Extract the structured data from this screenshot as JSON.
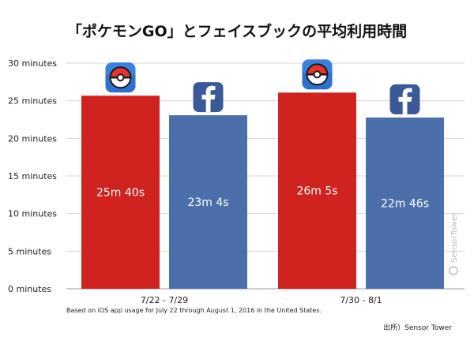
{
  "chart_data": {
    "type": "bar",
    "title": "「ポケモンGO」とフェイスブックの平均利用時間",
    "categories": [
      "7/22 - 7/29",
      "7/30 - 8/1"
    ],
    "series": [
      {
        "name": "Pokémon GO",
        "icon": "pokeball-app-icon",
        "color": "#d0231f",
        "values": [
          25.67,
          26.08
        ],
        "labels": [
          "25m 40s",
          "26m 5s"
        ]
      },
      {
        "name": "Facebook",
        "icon": "facebook-app-icon",
        "color": "#4a6faa",
        "values": [
          23.07,
          22.77
        ],
        "labels": [
          "23m 4s",
          "22m 46s"
        ]
      }
    ],
    "ylim": [
      0,
      30
    ],
    "yticks": [
      0,
      5,
      10,
      15,
      20,
      25,
      30
    ],
    "ytick_labels": [
      "0 minutes",
      "5 minutes",
      "10 minutes",
      "15 minutes",
      "20 minutes",
      "25 minutes",
      "30 minutes"
    ],
    "grid": true,
    "xlabel": "",
    "ylabel": ""
  },
  "footnote": "Based on iOS app usage for July 22 through August 1, 2016 in the United States.",
  "source": "出所）Sensor Tower",
  "watermark": "SensorTower",
  "colors": {
    "pokemon_red": "#d0231f",
    "facebook_blue": "#4a6faa",
    "grid": "#d6d6d6"
  }
}
